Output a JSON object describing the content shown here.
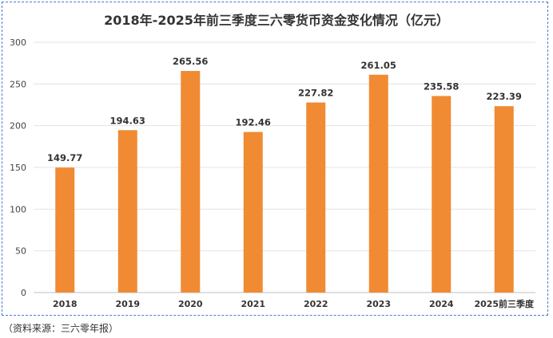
{
  "chart_data": {
    "type": "bar",
    "title": "2018年-2025年前三季度三六零货币资金变化情况（亿元）",
    "categories": [
      "2018",
      "2019",
      "2020",
      "2021",
      "2022",
      "2023",
      "2024",
      "2025前三季度"
    ],
    "values": [
      149.77,
      194.63,
      265.56,
      192.46,
      227.82,
      261.05,
      235.58,
      223.39
    ],
    "data_labels": [
      "149.77",
      "194.63",
      "265.56",
      "192.46",
      "227.82",
      "261.05",
      "235.58",
      "223.39"
    ],
    "ylim": [
      0,
      300
    ],
    "yticks": [
      "0",
      "50",
      "100",
      "150",
      "200",
      "250",
      "300"
    ],
    "xlabel": "",
    "ylabel": "",
    "grid": "horizontal",
    "bar_color": "#f08a33"
  },
  "source": "（资料来源：三六零年报）"
}
